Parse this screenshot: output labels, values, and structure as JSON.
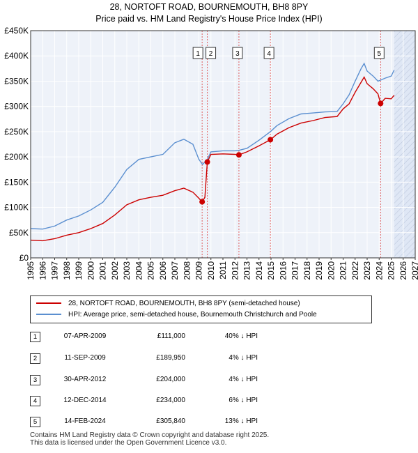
{
  "title_line1": "28, NORTOFT ROAD, BOURNEMOUTH, BH8 8PY",
  "title_line2": "Price paid vs. HM Land Registry's House Price Index (HPI)",
  "chart_data": {
    "type": "line",
    "title": "Price paid vs. HM Land Registry's House Price Index (HPI)",
    "xlabel": "",
    "ylabel": "",
    "xlim": [
      1995,
      2027
    ],
    "ylim": [
      0,
      450000
    ],
    "y_ticks": [
      0,
      50000,
      100000,
      150000,
      200000,
      250000,
      300000,
      350000,
      400000,
      450000
    ],
    "y_tick_labels": [
      "£0",
      "£50K",
      "£100K",
      "£150K",
      "£200K",
      "£250K",
      "£300K",
      "£350K",
      "£400K",
      "£450K"
    ],
    "x_ticks": [
      1995,
      1996,
      1997,
      1998,
      1999,
      2000,
      2001,
      2002,
      2003,
      2004,
      2005,
      2006,
      2007,
      2008,
      2009,
      2010,
      2011,
      2012,
      2013,
      2014,
      2015,
      2016,
      2017,
      2018,
      2019,
      2020,
      2021,
      2022,
      2023,
      2024,
      2025,
      2026,
      2027
    ],
    "x_tick_labels": [
      "1995",
      "1996",
      "1997",
      "1998",
      "1999",
      "2000",
      "2001",
      "2002",
      "2003",
      "2004",
      "2005",
      "2006",
      "2007",
      "2008",
      "2009",
      "2010",
      "2011",
      "2012",
      "2013",
      "2014",
      "2015",
      "2016",
      "2017",
      "2018",
      "2019",
      "2020",
      "2021",
      "2022",
      "2023",
      "2024",
      "2025",
      "2026",
      "2027"
    ],
    "forecast_start": 2025.25,
    "series": [
      {
        "name": "28, NORTOFT ROAD, BOURNEMOUTH, BH8 8PY (semi-detached house)",
        "color": "#cc0000",
        "x": [
          1995.0,
          1996.0,
          1997.0,
          1998.0,
          1999.0,
          2000.0,
          2001.0,
          2002.0,
          2003.0,
          2004.0,
          2005.0,
          2006.0,
          2007.0,
          2007.75,
          2008.5,
          2009.0,
          2009.27,
          2009.5,
          2009.7,
          2010.0,
          2011.0,
          2012.0,
          2012.33,
          2013.0,
          2014.0,
          2014.95,
          2015.5,
          2016.5,
          2017.5,
          2018.5,
          2019.5,
          2020.5,
          2021.0,
          2021.5,
          2022.0,
          2022.5,
          2022.75,
          2023.0,
          2023.5,
          2023.9,
          2024.12,
          2024.5,
          2025.0,
          2025.25
        ],
        "y": [
          35000,
          34000,
          38000,
          45000,
          50000,
          58000,
          68000,
          85000,
          105000,
          115000,
          120000,
          124000,
          133000,
          138000,
          130000,
          118000,
          111000,
          120000,
          189950,
          205000,
          206000,
          205000,
          204000,
          210000,
          222000,
          234000,
          245000,
          258000,
          267000,
          272000,
          278000,
          280000,
          295000,
          305000,
          328000,
          348000,
          358000,
          345000,
          335000,
          325000,
          305840,
          316000,
          315000,
          322000
        ]
      },
      {
        "name": "HPI: Average price, semi-detached house, Bournemouth Christchurch and Poole",
        "color": "#5b8fd0",
        "x": [
          1995.0,
          1996.0,
          1997.0,
          1998.0,
          1999.0,
          2000.0,
          2001.0,
          2002.0,
          2003.0,
          2004.0,
          2005.0,
          2006.0,
          2007.0,
          2007.75,
          2008.5,
          2009.0,
          2009.3,
          2009.7,
          2010.0,
          2011.0,
          2012.0,
          2012.33,
          2013.0,
          2014.0,
          2014.95,
          2015.5,
          2016.5,
          2017.5,
          2018.5,
          2019.5,
          2020.5,
          2021.0,
          2021.5,
          2022.0,
          2022.5,
          2022.75,
          2023.0,
          2023.5,
          2023.9,
          2024.12,
          2024.5,
          2025.0,
          2025.25
        ],
        "y": [
          58000,
          57000,
          63000,
          75000,
          83000,
          95000,
          110000,
          140000,
          175000,
          195000,
          200000,
          205000,
          228000,
          235000,
          225000,
          195000,
          185000,
          195000,
          210000,
          212000,
          212000,
          213000,
          217000,
          233000,
          250000,
          262000,
          276000,
          285000,
          287000,
          289000,
          290000,
          305000,
          323000,
          350000,
          375000,
          385000,
          370000,
          360000,
          350000,
          352000,
          356000,
          360000,
          372000
        ]
      }
    ],
    "sales": [
      {
        "label": "1",
        "x": 2009.27,
        "y": 111000
      },
      {
        "label": "2",
        "x": 2009.7,
        "y": 189950
      },
      {
        "label": "3",
        "x": 2012.33,
        "y": 204000
      },
      {
        "label": "4",
        "x": 2014.95,
        "y": 234000
      },
      {
        "label": "5",
        "x": 2024.12,
        "y": 305840
      }
    ]
  },
  "legend": {
    "property": "28, NORTOFT ROAD, BOURNEMOUTH, BH8 8PY (semi-detached house)",
    "hpi": "HPI: Average price, semi-detached house, Bournemouth Christchurch and Poole"
  },
  "transactions": [
    {
      "num": "1",
      "date": "07-APR-2009",
      "price": "£111,000",
      "hpi": "40% ↓ HPI"
    },
    {
      "num": "2",
      "date": "11-SEP-2009",
      "price": "£189,950",
      "hpi": "4% ↓ HPI"
    },
    {
      "num": "3",
      "date": "30-APR-2012",
      "price": "£204,000",
      "hpi": "4% ↓ HPI"
    },
    {
      "num": "4",
      "date": "12-DEC-2014",
      "price": "£234,000",
      "hpi": "6% ↓ HPI"
    },
    {
      "num": "5",
      "date": "14-FEB-2024",
      "price": "£305,840",
      "hpi": "13% ↓ HPI"
    }
  ],
  "footer_line1": "Contains HM Land Registry data © Crown copyright and database right 2025.",
  "footer_line2": "This data is licensed under the Open Government Licence v3.0.",
  "colors": {
    "property_line": "#cc0000",
    "hpi_line": "#5b8fd0",
    "plot_bg": "#eef2f9",
    "marker_dash": "#e06060",
    "shaded": "#dfe7f5"
  }
}
